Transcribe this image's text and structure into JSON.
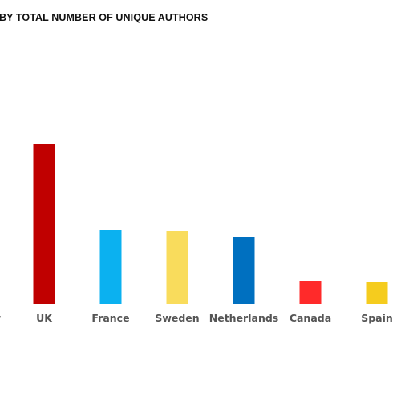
{
  "chart_data": {
    "type": "bar",
    "title": "BY TOTAL NUMBER OF UNIQUE AUTHORS",
    "categories": [
      "y",
      "UK",
      "France",
      "Sweden",
      "Netherlands",
      "Canada",
      "Spain"
    ],
    "values": [
      null,
      200,
      92,
      91,
      84,
      29,
      28
    ],
    "colors": [
      "#cccccc",
      "#c00000",
      "#0bb1f0",
      "#f9dc5c",
      "#0070c0",
      "#ff2a2a",
      "#f5cc1e"
    ],
    "xlabel": "",
    "ylabel": "",
    "ylim": [
      0,
      200
    ],
    "grid": false,
    "legend": "none"
  }
}
